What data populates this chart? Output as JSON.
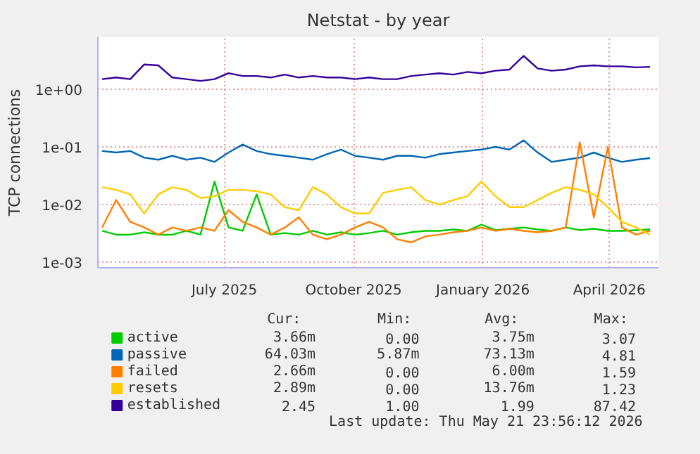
{
  "chart_data": {
    "type": "line",
    "title": "Netstat - by year",
    "ylabel": "TCP connections",
    "log": "y",
    "grid": true,
    "legend": "bottom",
    "line_style": "solid",
    "xlim": [
      "2025-04-17",
      "2026-05-21"
    ],
    "xticks": [
      {
        "value": "2025-07-16",
        "label": "July 2025"
      },
      {
        "value": "2025-10-16",
        "label": "October 2025"
      },
      {
        "value": "2026-01-16",
        "label": "January 2026"
      },
      {
        "value": "2026-04-16",
        "label": "April 2026"
      }
    ],
    "ylim": [
      0.0008,
      8
    ],
    "yticks": [
      {
        "value": 0.001,
        "label": "1e-03"
      },
      {
        "value": 0.01,
        "label": "1e-02"
      },
      {
        "value": 0.1,
        "label": "1e-01"
      },
      {
        "value": 1,
        "label": "1e+00"
      }
    ],
    "x": [
      "2025-04-20",
      "2025-04-30",
      "2025-05-10",
      "2025-05-20",
      "2025-05-30",
      "2025-06-09",
      "2025-06-19",
      "2025-06-29",
      "2025-07-09",
      "2025-07-19",
      "2025-07-29",
      "2025-08-08",
      "2025-08-18",
      "2025-08-28",
      "2025-09-07",
      "2025-09-17",
      "2025-09-27",
      "2025-10-07",
      "2025-10-17",
      "2025-10-27",
      "2025-11-06",
      "2025-11-16",
      "2025-11-26",
      "2025-12-06",
      "2025-12-16",
      "2025-12-26",
      "2026-01-05",
      "2026-01-15",
      "2026-01-25",
      "2026-02-04",
      "2026-02-14",
      "2026-02-24",
      "2026-03-06",
      "2026-03-16",
      "2026-03-26",
      "2026-04-05",
      "2026-04-15",
      "2026-04-25",
      "2026-05-05",
      "2026-05-15"
    ],
    "series": [
      {
        "name": "active",
        "color": "#00cc00",
        "values": [
          0.0035,
          0.003,
          0.003,
          0.0033,
          0.003,
          0.003,
          0.0035,
          0.003,
          0.025,
          0.004,
          0.0035,
          0.015,
          0.003,
          0.0032,
          0.003,
          0.0035,
          0.003,
          0.0033,
          0.003,
          0.0032,
          0.0035,
          0.003,
          0.0033,
          0.0035,
          0.0035,
          0.0037,
          0.0035,
          0.0045,
          0.0036,
          0.0038,
          0.004,
          0.0037,
          0.0035,
          0.004,
          0.0036,
          0.0038,
          0.0035,
          0.0035,
          0.0036,
          0.0037
        ]
      },
      {
        "name": "passive",
        "color": "#0066b3",
        "values": [
          0.085,
          0.08,
          0.085,
          0.065,
          0.06,
          0.07,
          0.06,
          0.065,
          0.055,
          0.08,
          0.11,
          0.085,
          0.075,
          0.07,
          0.065,
          0.06,
          0.075,
          0.09,
          0.07,
          0.065,
          0.06,
          0.07,
          0.07,
          0.065,
          0.075,
          0.08,
          0.085,
          0.09,
          0.1,
          0.09,
          0.13,
          0.08,
          0.055,
          0.06,
          0.065,
          0.08,
          0.065,
          0.055,
          0.06,
          0.064
        ]
      },
      {
        "name": "failed",
        "color": "#ff8000",
        "values": [
          0.004,
          0.012,
          0.005,
          0.004,
          0.003,
          0.004,
          0.0035,
          0.004,
          0.0035,
          0.008,
          0.005,
          0.004,
          0.003,
          0.004,
          0.006,
          0.003,
          0.0025,
          0.003,
          0.004,
          0.005,
          0.004,
          0.0025,
          0.0022,
          0.0028,
          0.003,
          0.0033,
          0.0035,
          0.004,
          0.0035,
          0.0038,
          0.0035,
          0.0033,
          0.0035,
          0.004,
          0.12,
          0.006,
          0.1,
          0.004,
          0.003,
          0.0035
        ]
      },
      {
        "name": "resets",
        "color": "#ffcc00",
        "values": [
          0.02,
          0.018,
          0.015,
          0.007,
          0.015,
          0.02,
          0.018,
          0.013,
          0.014,
          0.018,
          0.018,
          0.017,
          0.015,
          0.009,
          0.008,
          0.02,
          0.015,
          0.009,
          0.007,
          0.007,
          0.016,
          0.018,
          0.02,
          0.012,
          0.01,
          0.012,
          0.014,
          0.025,
          0.014,
          0.009,
          0.009,
          0.012,
          0.016,
          0.02,
          0.018,
          0.015,
          0.009,
          0.005,
          0.004,
          0.003
        ]
      },
      {
        "name": "established",
        "color": "#330099",
        "values": [
          1.5,
          1.6,
          1.5,
          2.7,
          2.6,
          1.6,
          1.5,
          1.4,
          1.5,
          1.9,
          1.7,
          1.7,
          1.6,
          1.8,
          1.6,
          1.7,
          1.6,
          1.6,
          1.5,
          1.6,
          1.5,
          1.5,
          1.7,
          1.8,
          1.9,
          1.8,
          2.0,
          1.9,
          2.1,
          2.2,
          3.8,
          2.3,
          2.1,
          2.2,
          2.5,
          2.6,
          2.5,
          2.5,
          2.4,
          2.45
        ]
      }
    ],
    "annotations": [
      "Cur:",
      "Min:",
      "Avg:",
      "Max:",
      "3.66m",
      "0.00",
      "3.75m",
      "3.07",
      "64.03m",
      "5.87m",
      "73.13m",
      "4.81",
      "2.66m",
      "0.00",
      "6.00m",
      "1.59",
      "2.89m",
      "0.00",
      "13.76m",
      "1.23",
      "2.45",
      "1.00",
      "1.99",
      "87.42",
      "Last update: Thu May 21 23:56:12 2026"
    ]
  }
}
